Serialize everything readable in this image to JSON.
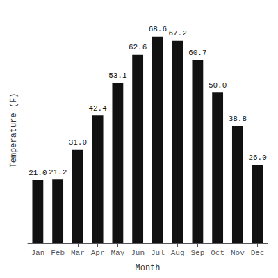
{
  "chart_data": {
    "type": "bar",
    "categories": [
      "Jan",
      "Feb",
      "Mar",
      "Apr",
      "May",
      "Jun",
      "Jul",
      "Aug",
      "Sep",
      "Oct",
      "Nov",
      "Dec"
    ],
    "values": [
      21.0,
      21.2,
      31.0,
      42.4,
      53.1,
      62.6,
      68.6,
      67.2,
      60.7,
      50.0,
      38.8,
      26.0
    ],
    "value_labels": [
      "21.0",
      "21.2",
      "31.0",
      "42.4",
      "53.1",
      "62.6",
      "68.6",
      "67.2",
      "60.7",
      "50.0",
      "38.8",
      "26.0"
    ],
    "color": "#111111",
    "xlabel": "Month",
    "ylabel": "Temperature (F)",
    "ylim": [
      0,
      75
    ],
    "yticks": [],
    "tick_labels": "x",
    "data_labels": true,
    "grid": false
  }
}
